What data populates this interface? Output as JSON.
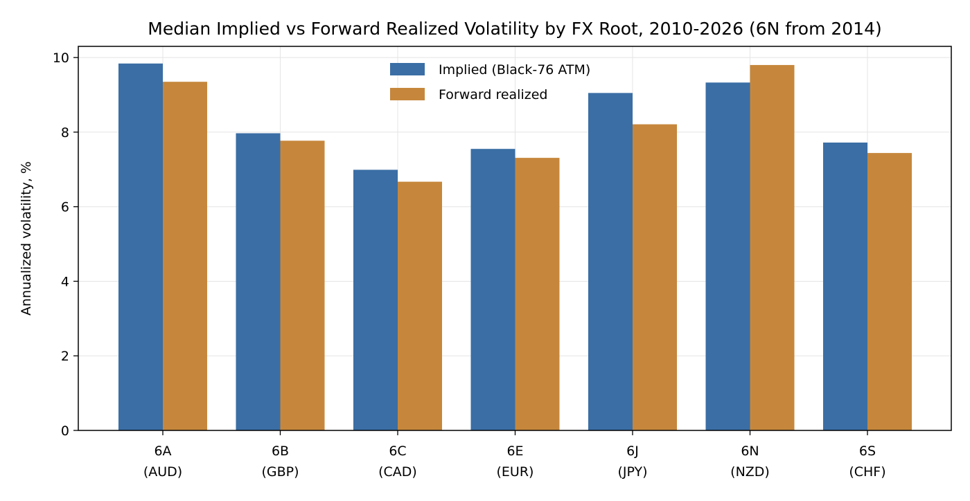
{
  "chart_data": {
    "type": "bar",
    "title": "Median Implied vs Forward Realized Volatility by FX Root, 2010-2026 (6N from 2014)",
    "xlabel": "",
    "ylabel": "Annualized volatility, %",
    "ylim": [
      0,
      10.3
    ],
    "yticks": [
      "0",
      "2",
      "4",
      "6",
      "8",
      "10"
    ],
    "grid": true,
    "legend_position": "top-center",
    "categories": [
      {
        "code": "6A",
        "currency": "(AUD)"
      },
      {
        "code": "6B",
        "currency": "(GBP)"
      },
      {
        "code": "6C",
        "currency": "(CAD)"
      },
      {
        "code": "6E",
        "currency": "(EUR)"
      },
      {
        "code": "6J",
        "currency": "(JPY)"
      },
      {
        "code": "6N",
        "currency": "(NZD)"
      },
      {
        "code": "6S",
        "currency": "(CHF)"
      }
    ],
    "series": [
      {
        "name": "Implied (Black-76 ATM)",
        "color": "#3a6ea5",
        "values": [
          9.84,
          7.97,
          6.99,
          7.55,
          9.05,
          9.33,
          7.72
        ]
      },
      {
        "name": "Forward realized",
        "color": "#c6873c",
        "values": [
          9.35,
          7.77,
          6.67,
          7.31,
          8.21,
          9.8,
          7.44
        ]
      }
    ]
  }
}
